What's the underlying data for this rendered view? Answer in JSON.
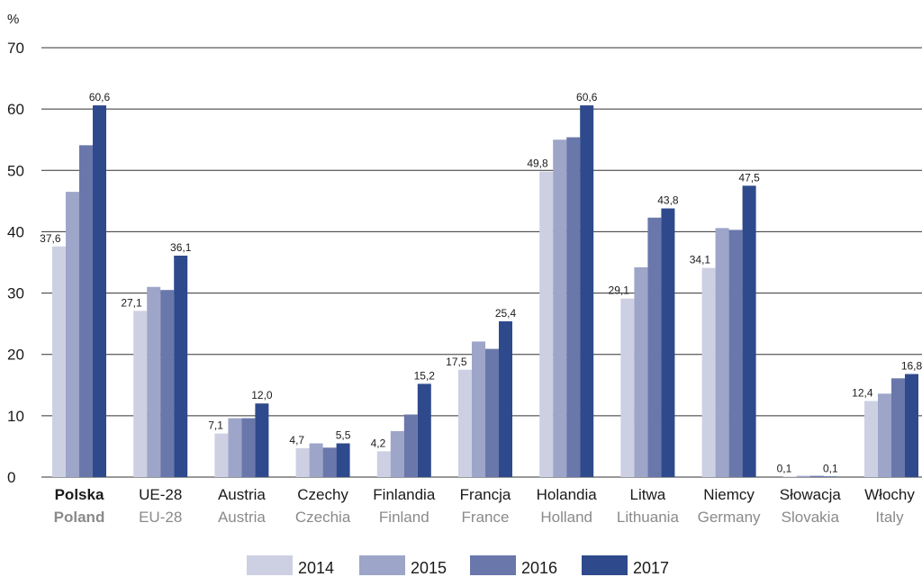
{
  "chart_data": {
    "type": "bar",
    "ylabel": "%",
    "ylim": [
      0,
      70
    ],
    "yticks": [
      0,
      10,
      20,
      30,
      40,
      50,
      60,
      70
    ],
    "grid": true,
    "legend_position": "bottom",
    "categories": [
      {
        "pl": "Polska",
        "en": "Poland",
        "bold": true
      },
      {
        "pl": "UE-28",
        "en": "EU-28",
        "bold": false
      },
      {
        "pl": "Austria",
        "en": "Austria",
        "bold": false
      },
      {
        "pl": "Czechy",
        "en": "Czechia",
        "bold": false
      },
      {
        "pl": "Finlandia",
        "en": "Finland",
        "bold": false
      },
      {
        "pl": "Francja",
        "en": "France",
        "bold": false
      },
      {
        "pl": "Holandia",
        "en": "Holland",
        "bold": false
      },
      {
        "pl": "Litwa",
        "en": "Lithuania",
        "bold": false
      },
      {
        "pl": "Niemcy",
        "en": "Germany",
        "bold": false
      },
      {
        "pl": "Słowacja",
        "en": "Slovakia",
        "bold": false
      },
      {
        "pl": "Włochy",
        "en": "Italy",
        "bold": false
      }
    ],
    "series": [
      {
        "name": "2014",
        "color": "#cdd0e3",
        "values": [
          37.6,
          27.1,
          7.1,
          4.7,
          4.2,
          17.5,
          49.8,
          29.1,
          34.1,
          0.1,
          12.4
        ],
        "labels": [
          "37,6",
          "27,1",
          "7,1",
          "4,7",
          "4,2",
          "17,5",
          "49,8",
          "29,1",
          "34,1",
          "0,1",
          "12,4"
        ]
      },
      {
        "name": "2015",
        "color": "#9da5c9",
        "values": [
          46.5,
          31.0,
          9.6,
          5.5,
          7.5,
          22.1,
          55.0,
          34.2,
          40.6,
          0.2,
          13.6
        ],
        "labels": []
      },
      {
        "name": "2016",
        "color": "#6a77ab",
        "values": [
          54.1,
          30.5,
          9.6,
          4.8,
          10.2,
          20.9,
          55.4,
          42.3,
          40.3,
          0.2,
          16.1
        ],
        "labels": []
      },
      {
        "name": "2017",
        "color": "#2e4a8c",
        "values": [
          60.6,
          36.1,
          12.0,
          5.5,
          15.2,
          25.4,
          60.6,
          43.8,
          47.5,
          0.1,
          16.8
        ],
        "labels": [
          "60,6",
          "36,1",
          "12,0",
          "5,5",
          "15,2",
          "25,4",
          "60,6",
          "43,8",
          "47,5",
          "0,1",
          "16,8"
        ]
      }
    ]
  }
}
